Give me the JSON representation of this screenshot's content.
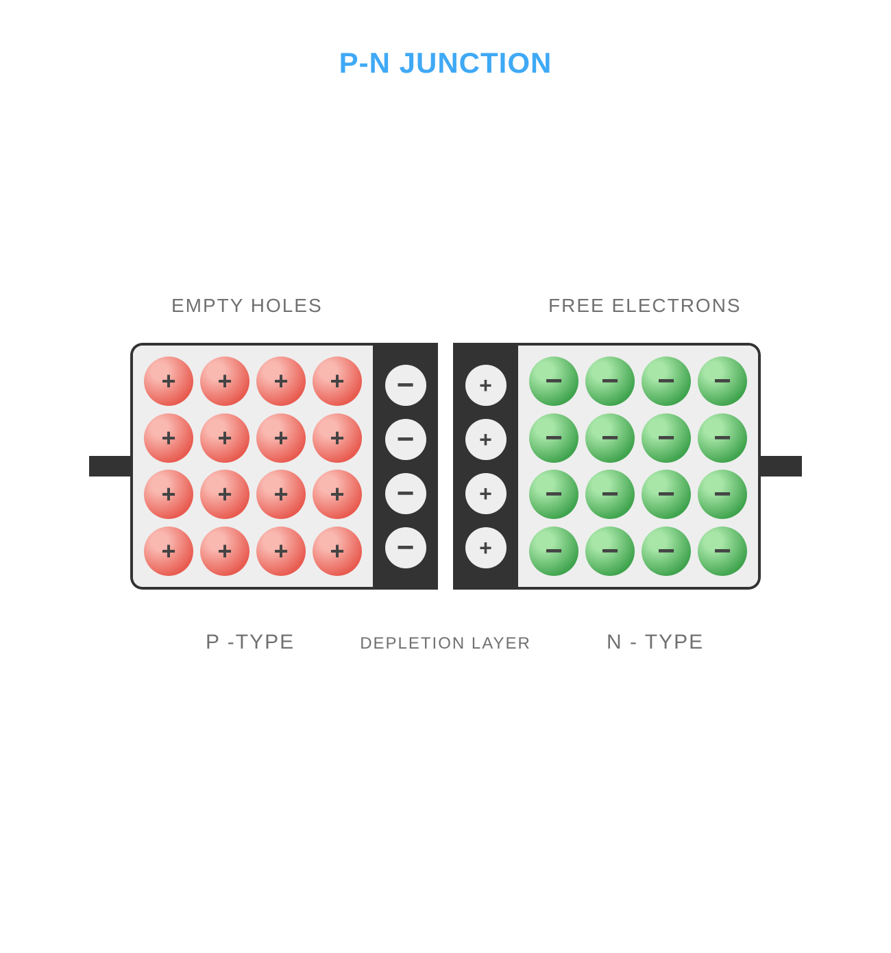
{
  "title": "P-N JUNCTION",
  "labels": {
    "top_left": "EMPTY HOLES",
    "top_right": "FREE ELECTRONS",
    "bottom_left": "P -TYPE",
    "bottom_center": "DEPLETION LAYER",
    "bottom_right": "N - TYPE"
  },
  "colors": {
    "title": "#3fa9f5",
    "label_text": "#707070",
    "border": "#333333",
    "lead": "#333333",
    "p_region_bg": "#eeeeee",
    "n_region_bg": "#eeeeee",
    "depletion_bg": "#333333",
    "hole_sphere_light": "#f9b8b0",
    "hole_sphere_dark": "#e85a4f",
    "electron_sphere_light": "#a8e6a8",
    "electron_sphere_dark": "#3fa34d",
    "depletion_sphere": "#eeeeee",
    "sign_color": "#444444",
    "depletion_sign_color": "#444444"
  },
  "diagram": {
    "p_region": {
      "rows": 4,
      "cols": 4,
      "charge": "+"
    },
    "n_region": {
      "rows": 4,
      "cols": 4,
      "charge": "−"
    },
    "depletion_left": {
      "count": 4,
      "charge": "−"
    },
    "depletion_right": {
      "count": 4,
      "charge": "+"
    }
  },
  "typography": {
    "title_fontsize": 42,
    "label_fontsize": 28,
    "bottom_label_fontsize": 30,
    "sign_fontsize": 36
  }
}
